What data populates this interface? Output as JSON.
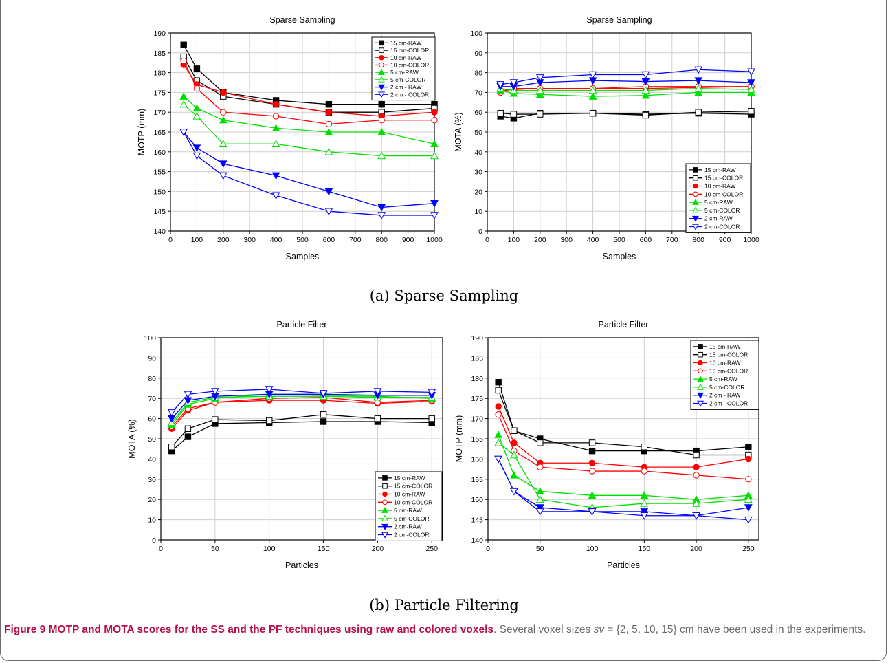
{
  "panel_captions": {
    "a": "(a) Sparse Sampling",
    "b": "(b) Particle Filtering"
  },
  "figure_caption": {
    "label": "Figure 9",
    "title": "MOTP and MOTA scores for the SS and the PF techniques using raw and colored voxels",
    "text_before_var": ". Several voxel sizes ",
    "var": "sv",
    "text_after_var": " = {2, 5, 10, 15} cm have been used in the experiments."
  },
  "colors": {
    "black": "#000000",
    "red": "#ff0000",
    "green": "#00e000",
    "blue": "#0000ff"
  },
  "chart_data": [
    {
      "id": "ss-motp",
      "type": "line",
      "title": "Sparse Sampling",
      "xlabel": "Samples",
      "ylabel": "MOTP (mm)",
      "xlim": [
        0,
        1000
      ],
      "ylim": [
        140,
        190
      ],
      "xticks": [
        0,
        100,
        200,
        300,
        400,
        500,
        600,
        700,
        800,
        900,
        1000
      ],
      "yticks": [
        140,
        145,
        150,
        155,
        160,
        165,
        170,
        175,
        180,
        185,
        190
      ],
      "grid": true,
      "legend": "top-right",
      "x": [
        50,
        100,
        200,
        400,
        600,
        800,
        1000
      ],
      "series": [
        {
          "name": "15 cm-RAW",
          "color": "#000000",
          "marker": "square",
          "filled": true,
          "values": [
            187,
            181,
            175,
            173,
            172,
            172,
            172
          ]
        },
        {
          "name": "15 cm-COLOR",
          "color": "#000000",
          "marker": "square",
          "filled": false,
          "values": [
            184,
            178,
            174,
            172,
            170,
            170,
            171
          ]
        },
        {
          "name": "10 cm-RAW",
          "color": "#ff0000",
          "marker": "circle",
          "filled": true,
          "values": [
            182,
            177,
            175,
            172,
            170,
            169,
            170
          ]
        },
        {
          "name": "10 cm-COLOR",
          "color": "#ff0000",
          "marker": "circle",
          "filled": false,
          "values": [
            183,
            176,
            170,
            169,
            167,
            168,
            168
          ]
        },
        {
          "name": "5 cm-RAW",
          "color": "#00e000",
          "marker": "triangle-up",
          "filled": true,
          "values": [
            174,
            171,
            168,
            166,
            165,
            165,
            162
          ]
        },
        {
          "name": "5 cm-COLOR",
          "color": "#00e000",
          "marker": "triangle-up",
          "filled": false,
          "values": [
            172,
            169,
            162,
            162,
            160,
            159,
            159
          ]
        },
        {
          "name": "2 cm - RAW",
          "color": "#0000ff",
          "marker": "triangle-down",
          "filled": true,
          "values": [
            165,
            161,
            157,
            154,
            150,
            146,
            147
          ]
        },
        {
          "name": "2 cm - COLOR",
          "color": "#0000ff",
          "marker": "triangle-down",
          "filled": false,
          "values": [
            165,
            159,
            154,
            149,
            145,
            144,
            144
          ]
        }
      ]
    },
    {
      "id": "ss-mota",
      "type": "line",
      "title": "Sparse Sampling",
      "xlabel": "Samples",
      "ylabel": "MOTA (%)",
      "xlim": [
        0,
        1000
      ],
      "ylim": [
        0,
        100
      ],
      "xticks": [
        0,
        100,
        200,
        300,
        400,
        500,
        600,
        700,
        800,
        900,
        1000
      ],
      "yticks": [
        0,
        10,
        20,
        30,
        40,
        50,
        60,
        70,
        80,
        90,
        100
      ],
      "grid": true,
      "legend": "bottom-right",
      "x": [
        50,
        100,
        200,
        400,
        600,
        800,
        1000
      ],
      "series": [
        {
          "name": "15 cm-RAW",
          "color": "#000000",
          "marker": "square",
          "filled": true,
          "values": [
            58,
            57,
            59.5,
            59.5,
            59,
            59.5,
            59
          ]
        },
        {
          "name": "15 cm-COLOR",
          "color": "#000000",
          "marker": "square",
          "filled": false,
          "values": [
            59.5,
            59,
            59,
            59.5,
            58.5,
            60,
            60.5
          ]
        },
        {
          "name": "10 cm-RAW",
          "color": "#ff0000",
          "marker": "circle",
          "filled": true,
          "values": [
            71,
            71.5,
            72,
            72,
            72,
            72.5,
            73
          ]
        },
        {
          "name": "10 cm-COLOR",
          "color": "#ff0000",
          "marker": "circle",
          "filled": false,
          "values": [
            70,
            72,
            72,
            72,
            73,
            73,
            73
          ]
        },
        {
          "name": "5 cm-RAW",
          "color": "#00e000",
          "marker": "triangle-up",
          "filled": true,
          "values": [
            71,
            69.5,
            69,
            68,
            68.5,
            70,
            70
          ]
        },
        {
          "name": "5 cm-COLOR",
          "color": "#00e000",
          "marker": "triangle-up",
          "filled": false,
          "values": [
            72,
            71,
            71,
            71,
            71,
            72,
            71.5
          ]
        },
        {
          "name": "2 cm-RAW",
          "color": "#0000ff",
          "marker": "triangle-down",
          "filled": true,
          "values": [
            73,
            73,
            75,
            76,
            75.5,
            76,
            75
          ]
        },
        {
          "name": "2 cm-COLOR",
          "color": "#0000ff",
          "marker": "triangle-down",
          "filled": false,
          "values": [
            74,
            75,
            77.5,
            79,
            79,
            81.5,
            80.5
          ]
        }
      ]
    },
    {
      "id": "pf-mota",
      "type": "line",
      "title": "Particle Filter",
      "xlabel": "Particles",
      "ylabel": "MOTA (%)",
      "xlim": [
        0,
        260
      ],
      "ylim": [
        0,
        100
      ],
      "xticks": [
        0,
        50,
        100,
        150,
        200,
        250
      ],
      "yticks": [
        0,
        10,
        20,
        30,
        40,
        50,
        60,
        70,
        80,
        90,
        100
      ],
      "grid": true,
      "legend": "bottom-right",
      "x": [
        10,
        25,
        50,
        100,
        150,
        200,
        250
      ],
      "series": [
        {
          "name": "15 cm-RAW",
          "color": "#000000",
          "marker": "square",
          "filled": true,
          "values": [
            44,
            51,
            57.5,
            58,
            58.5,
            58.5,
            58
          ]
        },
        {
          "name": "15 cm-COLOR",
          "color": "#000000",
          "marker": "square",
          "filled": false,
          "values": [
            46,
            55,
            59.5,
            59,
            62,
            60,
            60
          ]
        },
        {
          "name": "10 cm-RAW",
          "color": "#ff0000",
          "marker": "circle",
          "filled": true,
          "values": [
            55,
            64,
            68,
            69,
            69,
            67.5,
            68.5
          ]
        },
        {
          "name": "10 cm-COLOR",
          "color": "#ff0000",
          "marker": "circle",
          "filled": false,
          "values": [
            56,
            65,
            68,
            70,
            70.5,
            68,
            69
          ]
        },
        {
          "name": "5 cm-RAW",
          "color": "#00e000",
          "marker": "triangle-up",
          "filled": true,
          "values": [
            57,
            67,
            70,
            72,
            71.5,
            71,
            70
          ]
        },
        {
          "name": "5 cm-COLOR",
          "color": "#00e000",
          "marker": "triangle-up",
          "filled": false,
          "values": [
            58,
            68,
            70.5,
            71,
            71,
            70.5,
            70.5
          ]
        },
        {
          "name": "2 cm-RAW",
          "color": "#0000ff",
          "marker": "triangle-down",
          "filled": true,
          "values": [
            60,
            69,
            71,
            72,
            72,
            71.5,
            71.5
          ]
        },
        {
          "name": "2 cm-COLOR",
          "color": "#0000ff",
          "marker": "triangle-down",
          "filled": false,
          "values": [
            63,
            72,
            73.5,
            74.5,
            72.5,
            73.5,
            73
          ]
        }
      ]
    },
    {
      "id": "pf-motp",
      "type": "line",
      "title": "Particle Filter",
      "xlabel": "Particles",
      "ylabel": "MOTP (mm)",
      "xlim": [
        0,
        260
      ],
      "ylim": [
        140,
        190
      ],
      "xticks": [
        0,
        50,
        100,
        150,
        200,
        250
      ],
      "yticks": [
        140,
        145,
        150,
        155,
        160,
        165,
        170,
        175,
        180,
        185,
        190
      ],
      "grid": true,
      "legend": "top-right",
      "x": [
        10,
        25,
        50,
        100,
        150,
        200,
        250
      ],
      "series": [
        {
          "name": "15 cm-RAW",
          "color": "#000000",
          "marker": "square",
          "filled": true,
          "values": [
            179,
            167,
            165,
            162,
            162,
            162,
            163
          ]
        },
        {
          "name": "15 cm-COLOR",
          "color": "#000000",
          "marker": "square",
          "filled": false,
          "values": [
            177,
            167,
            164,
            164,
            163,
            161,
            161
          ]
        },
        {
          "name": "10 cm-RAW",
          "color": "#ff0000",
          "marker": "circle",
          "filled": true,
          "values": [
            173,
            164,
            159,
            159,
            158,
            158,
            160
          ]
        },
        {
          "name": "10 cm-COLOR",
          "color": "#ff0000",
          "marker": "circle",
          "filled": false,
          "values": [
            171,
            162,
            158,
            157,
            157,
            156,
            155
          ]
        },
        {
          "name": "5 cm-RAW",
          "color": "#00e000",
          "marker": "triangle-up",
          "filled": true,
          "values": [
            166,
            156,
            152,
            151,
            151,
            150,
            151
          ]
        },
        {
          "name": "5 cm-COLOR",
          "color": "#00e000",
          "marker": "triangle-up",
          "filled": false,
          "values": [
            164,
            161,
            150,
            148,
            149,
            149,
            150
          ]
        },
        {
          "name": "2 cm - RAW",
          "color": "#0000ff",
          "marker": "triangle-down",
          "filled": true,
          "values": [
            160,
            152,
            148,
            147,
            147,
            146,
            148
          ]
        },
        {
          "name": "2 cm - COLOR",
          "color": "#0000ff",
          "marker": "triangle-down",
          "filled": false,
          "values": [
            160,
            152,
            147,
            147,
            146,
            146,
            145
          ]
        }
      ]
    }
  ]
}
